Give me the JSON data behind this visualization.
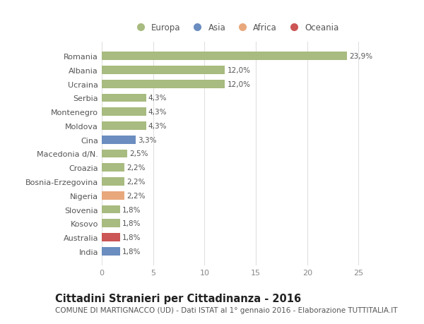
{
  "countries": [
    "Romania",
    "Albania",
    "Ucraina",
    "Serbia",
    "Montenegro",
    "Moldova",
    "Cina",
    "Macedonia d/N.",
    "Croazia",
    "Bosnia-Erzegovina",
    "Nigeria",
    "Slovenia",
    "Kosovo",
    "Australia",
    "India"
  ],
  "values": [
    23.9,
    12.0,
    12.0,
    4.3,
    4.3,
    4.3,
    3.3,
    2.5,
    2.2,
    2.2,
    2.2,
    1.8,
    1.8,
    1.8,
    1.8
  ],
  "labels": [
    "23,9%",
    "12,0%",
    "12,0%",
    "4,3%",
    "4,3%",
    "4,3%",
    "3,3%",
    "2,5%",
    "2,2%",
    "2,2%",
    "2,2%",
    "1,8%",
    "1,8%",
    "1,8%",
    "1,8%"
  ],
  "continents": [
    "Europa",
    "Europa",
    "Europa",
    "Europa",
    "Europa",
    "Europa",
    "Asia",
    "Europa",
    "Europa",
    "Europa",
    "Africa",
    "Europa",
    "Europa",
    "Oceania",
    "Asia"
  ],
  "colors": {
    "Europa": "#a8bb80",
    "Asia": "#6b8dbf",
    "Africa": "#e8a87c",
    "Oceania": "#cc5555"
  },
  "legend_order": [
    "Europa",
    "Asia",
    "Africa",
    "Oceania"
  ],
  "title": "Cittadini Stranieri per Cittadinanza - 2016",
  "subtitle": "COMUNE DI MARTIGNACCO (UD) - Dati ISTAT al 1° gennaio 2016 - Elaborazione TUTTITALIA.IT",
  "xlim": [
    0,
    26
  ],
  "xticks": [
    0,
    5,
    10,
    15,
    20,
    25
  ],
  "bg_color": "#ffffff",
  "grid_color": "#e0e0e0",
  "bar_height": 0.6,
  "title_fontsize": 10.5,
  "subtitle_fontsize": 7.5,
  "label_fontsize": 7.5,
  "tick_fontsize": 8,
  "legend_fontsize": 8.5
}
